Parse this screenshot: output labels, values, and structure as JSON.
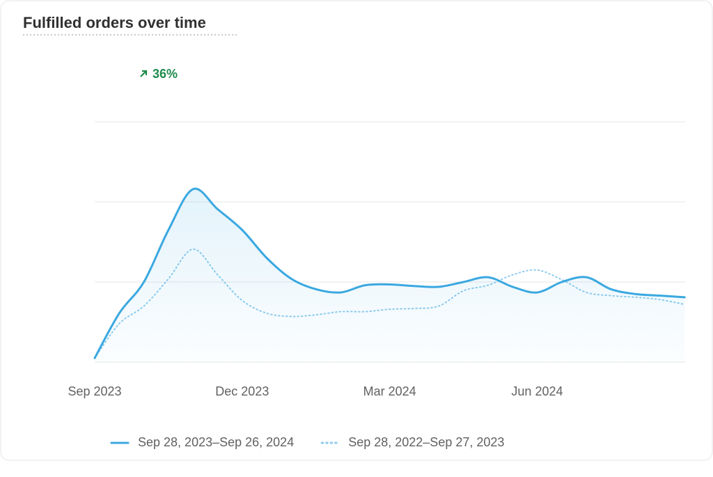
{
  "chart_data": {
    "type": "line",
    "title": "Fulfilled orders over time",
    "annotation": "36%",
    "x": [
      0,
      0.5,
      1,
      1.5,
      2,
      2.5,
      3,
      3.5,
      4,
      4.5,
      5,
      5.5,
      6,
      6.5,
      7,
      7.5,
      8,
      8.5,
      9,
      9.5,
      10,
      10.5,
      11,
      11.5,
      12
    ],
    "xlim": [
      0,
      12
    ],
    "xticks": [
      {
        "value": 0,
        "label": "Sep 2023"
      },
      {
        "value": 3,
        "label": "Dec 2023"
      },
      {
        "value": 6,
        "label": "Mar 2024"
      },
      {
        "value": 9,
        "label": "Jun 2024"
      }
    ],
    "ylim": [
      0,
      3
    ],
    "yticks": [
      0,
      1,
      2,
      3
    ],
    "show_y_tick_labels": false,
    "grid": true,
    "series": [
      {
        "name": "Sep 28, 2023–Sep 26, 2024",
        "color": "#3aa8e0",
        "style": "solid",
        "values": [
          0.05,
          0.61,
          1.0,
          1.65,
          2.16,
          1.91,
          1.65,
          1.3,
          1.04,
          0.91,
          0.87,
          0.96,
          0.97,
          0.95,
          0.94,
          1.0,
          1.06,
          0.94,
          0.87,
          1.0,
          1.06,
          0.91,
          0.85,
          0.83,
          0.81
        ]
      },
      {
        "name": "Sep 28, 2022–Sep 27, 2023",
        "color": "#8ccbee",
        "style": "dotted",
        "values": [
          0.05,
          0.48,
          0.7,
          1.04,
          1.41,
          1.09,
          0.77,
          0.61,
          0.57,
          0.59,
          0.63,
          0.63,
          0.66,
          0.67,
          0.7,
          0.89,
          0.96,
          1.09,
          1.15,
          1.03,
          0.87,
          0.83,
          0.81,
          0.78,
          0.72
        ]
      }
    ]
  }
}
